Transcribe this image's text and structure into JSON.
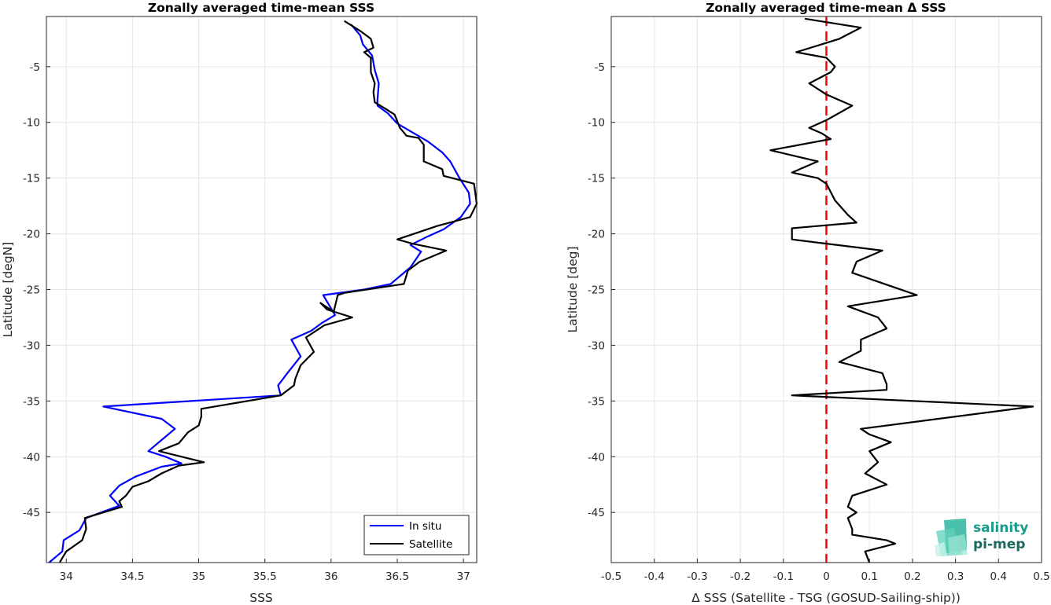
{
  "chart_data": [
    {
      "type": "line",
      "title": "Zonally averaged time-mean SSS",
      "xlabel": "SSS",
      "ylabel": "Latitude [degN]",
      "xlim": [
        33.85,
        37.1
      ],
      "ylim": [
        -49.5,
        -0.5
      ],
      "x_ticks": [
        34,
        34.5,
        35,
        35.5,
        36,
        36.5,
        37
      ],
      "x_tick_labels": [
        "34",
        "34.5",
        "35",
        "35.5",
        "36",
        "36.5",
        "37"
      ],
      "y_ticks": [
        -5,
        -10,
        -15,
        -20,
        -25,
        -30,
        -35,
        -40,
        -45
      ],
      "y_tick_labels": [
        "-5",
        "-10",
        "-15",
        "-20",
        "-25",
        "-30",
        "-35",
        "-40",
        "-45"
      ],
      "grid": true,
      "legend": "bottom-right",
      "series": [
        {
          "name": "In situ",
          "color": "#0000ff",
          "points": [
            [
              36.15,
              -1.2
            ],
            [
              36.22,
              -2.2
            ],
            [
              36.24,
              -3.0
            ],
            [
              36.31,
              -4.0
            ],
            [
              36.33,
              -5.3
            ],
            [
              36.36,
              -6.5
            ],
            [
              36.35,
              -8.0
            ],
            [
              36.35,
              -8.5
            ],
            [
              36.43,
              -9.2
            ],
            [
              36.5,
              -10.1
            ],
            [
              36.6,
              -10.8
            ],
            [
              36.73,
              -11.7
            ],
            [
              36.84,
              -12.7
            ],
            [
              36.9,
              -13.5
            ],
            [
              36.97,
              -15.0
            ],
            [
              37.04,
              -16.3
            ],
            [
              37.05,
              -17.3
            ],
            [
              36.98,
              -18.5
            ],
            [
              36.85,
              -19.6
            ],
            [
              36.72,
              -20.3
            ],
            [
              36.6,
              -21.0
            ],
            [
              36.68,
              -21.6
            ],
            [
              36.6,
              -23.0
            ],
            [
              36.45,
              -24.5
            ],
            [
              36.25,
              -25.0
            ],
            [
              35.94,
              -25.5
            ],
            [
              36.03,
              -27.3
            ],
            [
              35.93,
              -28.0
            ],
            [
              35.85,
              -28.7
            ],
            [
              35.7,
              -29.5
            ],
            [
              35.77,
              -31.0
            ],
            [
              35.67,
              -32.5
            ],
            [
              35.6,
              -33.6
            ],
            [
              35.62,
              -34.5
            ],
            [
              34.28,
              -35.5
            ],
            [
              34.72,
              -36.6
            ],
            [
              34.82,
              -37.5
            ],
            [
              34.72,
              -38.5
            ],
            [
              34.62,
              -39.5
            ],
            [
              34.75,
              -40.0
            ],
            [
              34.87,
              -40.6
            ],
            [
              34.72,
              -40.9
            ],
            [
              34.52,
              -41.8
            ],
            [
              34.4,
              -42.6
            ],
            [
              34.33,
              -43.5
            ],
            [
              34.4,
              -44.4
            ],
            [
              34.15,
              -45.5
            ],
            [
              34.1,
              -46.6
            ],
            [
              33.98,
              -47.5
            ],
            [
              33.97,
              -48.5
            ],
            [
              33.87,
              -49.5
            ]
          ]
        },
        {
          "name": "Satellite",
          "color": "#000000",
          "points": [
            [
              36.1,
              -0.9
            ],
            [
              36.22,
              -1.8
            ],
            [
              36.3,
              -2.5
            ],
            [
              36.32,
              -3.3
            ],
            [
              36.25,
              -3.7
            ],
            [
              36.3,
              -4.2
            ],
            [
              36.3,
              -5.5
            ],
            [
              36.33,
              -6.5
            ],
            [
              36.32,
              -7.3
            ],
            [
              36.33,
              -8.2
            ],
            [
              36.4,
              -8.7
            ],
            [
              36.48,
              -9.3
            ],
            [
              36.52,
              -10.5
            ],
            [
              36.57,
              -11.2
            ],
            [
              36.66,
              -11.4
            ],
            [
              36.7,
              -12.0
            ],
            [
              36.7,
              -13.5
            ],
            [
              36.84,
              -14.2
            ],
            [
              36.85,
              -14.8
            ],
            [
              37.08,
              -15.5
            ],
            [
              37.1,
              -17.3
            ],
            [
              37.05,
              -18.5
            ],
            [
              36.8,
              -19.3
            ],
            [
              36.5,
              -20.5
            ],
            [
              36.62,
              -20.9
            ],
            [
              36.87,
              -21.5
            ],
            [
              36.67,
              -22.5
            ],
            [
              36.58,
              -23.3
            ],
            [
              36.55,
              -24.5
            ],
            [
              36.1,
              -25.3
            ],
            [
              36.05,
              -25.5
            ],
            [
              36.02,
              -27.0
            ],
            [
              35.92,
              -26.2
            ],
            [
              35.97,
              -26.8
            ],
            [
              36.16,
              -27.5
            ],
            [
              35.95,
              -28.2
            ],
            [
              35.81,
              -29.3
            ],
            [
              35.87,
              -30.6
            ],
            [
              35.77,
              -31.8
            ],
            [
              35.73,
              -33.0
            ],
            [
              35.72,
              -33.6
            ],
            [
              35.62,
              -34.5
            ],
            [
              35.02,
              -35.7
            ],
            [
              35.02,
              -36.4
            ],
            [
              35.0,
              -37.2
            ],
            [
              34.92,
              -37.8
            ],
            [
              34.85,
              -38.8
            ],
            [
              34.7,
              -39.5
            ],
            [
              35.04,
              -40.5
            ],
            [
              34.85,
              -40.8
            ],
            [
              34.72,
              -41.5
            ],
            [
              34.62,
              -42.2
            ],
            [
              34.5,
              -42.7
            ],
            [
              34.45,
              -43.5
            ],
            [
              34.4,
              -44.0
            ],
            [
              34.42,
              -44.5
            ],
            [
              34.14,
              -45.5
            ],
            [
              34.15,
              -46.5
            ],
            [
              34.12,
              -47.5
            ],
            [
              34.0,
              -48.5
            ],
            [
              33.95,
              -49.5
            ]
          ]
        }
      ],
      "legend_entries": [
        "In situ",
        "Satellite"
      ]
    },
    {
      "type": "line",
      "title": "Zonally averaged time-mean Δ SSS",
      "xlabel": "Δ SSS (Satellite - TSG (GOSUD-Sailing-ship))",
      "ylabel": "Latitude [deg]",
      "xlim": [
        -0.5,
        0.5
      ],
      "ylim": [
        -49.5,
        -0.5
      ],
      "x_ticks": [
        -0.5,
        -0.4,
        -0.3,
        -0.2,
        -0.1,
        0,
        0.1,
        0.2,
        0.3,
        0.4,
        0.5
      ],
      "x_tick_labels": [
        "-0.5",
        "-0.4",
        "-0.3",
        "-0.2",
        "-0.1",
        "0",
        "0.1",
        "0.2",
        "0.3",
        "0.4",
        "0.5"
      ],
      "y_ticks": [
        -5,
        -10,
        -15,
        -20,
        -25,
        -30,
        -35,
        -40,
        -45
      ],
      "y_tick_labels": [
        "-5",
        "-10",
        "-15",
        "-20",
        "-25",
        "-30",
        "-35",
        "-40",
        "-45"
      ],
      "grid": true,
      "reference_line": {
        "x": 0,
        "color": "#ff0000",
        "style": "dashed"
      },
      "series": [
        {
          "color": "#000000",
          "points": [
            [
              -0.05,
              -0.7
            ],
            [
              0.08,
              -1.5
            ],
            [
              0.03,
              -2.5
            ],
            [
              -0.07,
              -3.7
            ],
            [
              0.0,
              -4.2
            ],
            [
              0.02,
              -5.0
            ],
            [
              0.01,
              -5.5
            ],
            [
              -0.04,
              -6.5
            ],
            [
              0.0,
              -7.5
            ],
            [
              0.06,
              -8.5
            ],
            [
              0.0,
              -9.8
            ],
            [
              -0.04,
              -10.5
            ],
            [
              -0.01,
              -11.0
            ],
            [
              0.01,
              -11.5
            ],
            [
              -0.13,
              -12.5
            ],
            [
              -0.02,
              -13.5
            ],
            [
              -0.08,
              -14.5
            ],
            [
              -0.02,
              -15.0
            ],
            [
              0.0,
              -15.5
            ],
            [
              0.02,
              -17.0
            ],
            [
              0.05,
              -18.3
            ],
            [
              0.07,
              -19.0
            ],
            [
              -0.08,
              -19.5
            ],
            [
              -0.08,
              -20.5
            ],
            [
              0.13,
              -21.5
            ],
            [
              0.07,
              -22.5
            ],
            [
              0.06,
              -23.5
            ],
            [
              0.21,
              -25.5
            ],
            [
              0.05,
              -26.5
            ],
            [
              0.12,
              -27.5
            ],
            [
              0.14,
              -28.5
            ],
            [
              0.08,
              -29.5
            ],
            [
              0.08,
              -30.5
            ],
            [
              0.03,
              -31.5
            ],
            [
              0.13,
              -32.5
            ],
            [
              0.14,
              -33.5
            ],
            [
              0.14,
              -34.0
            ],
            [
              -0.08,
              -34.5
            ],
            [
              0.48,
              -35.5
            ],
            [
              0.08,
              -37.5
            ],
            [
              0.1,
              -38.0
            ],
            [
              0.15,
              -38.7
            ],
            [
              0.1,
              -39.5
            ],
            [
              0.12,
              -40.5
            ],
            [
              0.09,
              -41.5
            ],
            [
              0.14,
              -42.5
            ],
            [
              0.06,
              -43.5
            ],
            [
              0.05,
              -44.5
            ],
            [
              0.07,
              -45.0
            ],
            [
              0.05,
              -45.5
            ],
            [
              0.06,
              -46.5
            ],
            [
              0.06,
              -47.0
            ],
            [
              0.14,
              -47.5
            ],
            [
              0.16,
              -47.8
            ],
            [
              0.09,
              -48.5
            ],
            [
              0.1,
              -49.5
            ]
          ]
        }
      ]
    }
  ],
  "logo": {
    "line1": "salinity",
    "line2": "pi-mep",
    "color": "#1a9c8c"
  }
}
